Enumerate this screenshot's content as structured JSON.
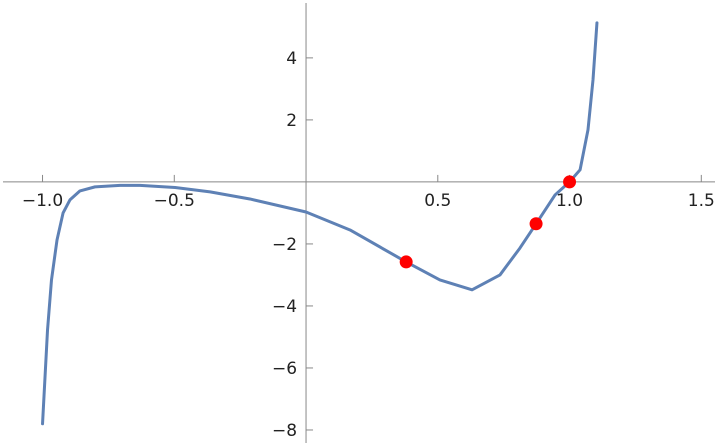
{
  "chart_data": {
    "type": "line",
    "xlim": [
      -1.15,
      1.552
    ],
    "ylim": [
      -8.42,
      5.77
    ],
    "xticks": [
      {
        "value": -1.0,
        "label": "−1.0"
      },
      {
        "value": -0.5,
        "label": "−0.5"
      },
      0.5,
      {
        "value": 1.0,
        "label": "1.0"
      },
      1.5
    ],
    "yticks": [
      4,
      2,
      {
        "value": -2,
        "label": "−2"
      },
      {
        "value": -4,
        "label": "−4"
      },
      {
        "value": -6,
        "label": "−6"
      },
      {
        "value": -8,
        "label": "−8"
      }
    ],
    "series": [
      {
        "color": "#5e81b5",
        "style": "line",
        "x": [
          -1.0,
          -0.981,
          -0.966,
          -0.945,
          -0.922,
          -0.896,
          -0.858,
          -0.801,
          -0.706,
          -0.63,
          -0.497,
          -0.364,
          -0.213,
          0,
          0.167,
          0.38,
          0.508,
          0.63,
          0.736,
          0.812,
          0.873,
          0.945,
          1.0,
          1.04,
          1.07,
          1.089,
          1.104
        ],
        "values": [
          -7.8,
          -4.77,
          -3.16,
          -1.87,
          -1.0,
          -0.58,
          -0.29,
          -0.16,
          -0.11,
          -0.11,
          -0.18,
          -0.32,
          -0.55,
          -0.97,
          -1.55,
          -2.58,
          -3.16,
          -3.48,
          -3.0,
          -2.13,
          -1.35,
          -0.42,
          0,
          0.39,
          1.68,
          3.29,
          5.13
        ]
      },
      {
        "color": "#ff0000",
        "style": "points",
        "x": [
          0.38,
          0.873,
          1.0
        ],
        "values": [
          -2.58,
          -1.35,
          0
        ]
      }
    ]
  }
}
